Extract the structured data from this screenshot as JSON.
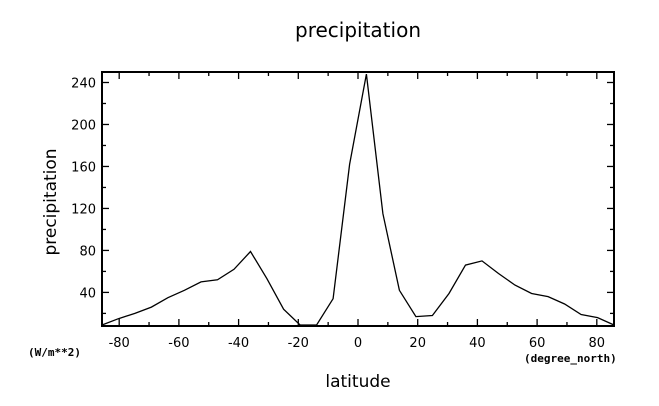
{
  "chart_data": {
    "type": "line",
    "title": "precipitation",
    "xlabel": "latitude",
    "ylabel": "precipitation",
    "x_unit": "(degree_north)",
    "y_unit": "(W/m**2)",
    "xlim": [
      -85.76,
      85.76
    ],
    "ylim": [
      8,
      250
    ],
    "x_ticks": [
      -80,
      -60,
      -40,
      -20,
      0,
      20,
      40,
      60,
      80
    ],
    "y_ticks": [
      40,
      80,
      120,
      160,
      200,
      240
    ],
    "grid": false,
    "series": [
      {
        "x": [
          -85.76,
          -80.27,
          -74.74,
          -69.21,
          -63.68,
          -58.14,
          -52.61,
          -47.08,
          -41.54,
          -36.01,
          -30.47,
          -24.94,
          -19.41,
          -13.87,
          -8.34,
          -2.8,
          2.8,
          8.34,
          13.87,
          19.41,
          24.94,
          30.47,
          36.01,
          41.54,
          47.08,
          52.61,
          58.14,
          63.68,
          69.21,
          74.74,
          80.27,
          85.76
        ],
        "y": [
          9,
          15,
          20,
          26,
          35,
          42,
          50,
          52,
          62,
          79,
          53,
          24,
          9,
          9,
          34,
          162,
          248,
          115,
          42,
          17,
          18,
          39,
          66,
          70,
          58,
          47,
          39,
          36,
          29,
          19,
          16,
          9
        ]
      }
    ]
  }
}
